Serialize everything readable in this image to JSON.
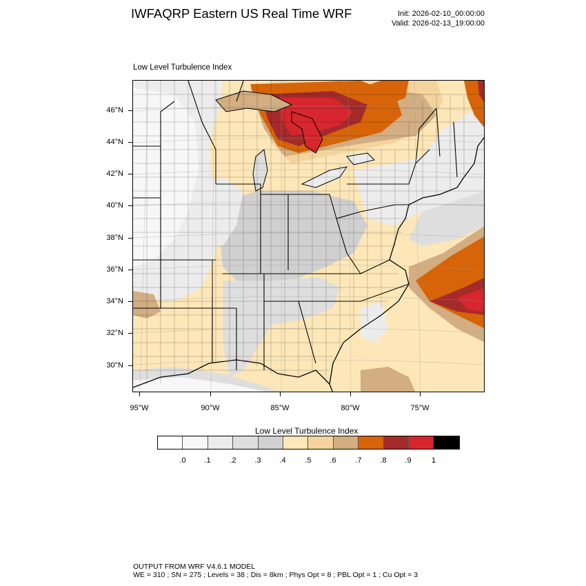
{
  "header": {
    "title": "IWFAQRP Eastern US Real Time WRF",
    "init": "Init: 2026-02-10_00:00:00",
    "valid": "Valid: 2026-02-13_19:00:00"
  },
  "panel": {
    "title": "Low Level Turbulence Index"
  },
  "axes": {
    "lat_labels": [
      "46°N",
      "44°N",
      "42°N",
      "40°N",
      "38°N",
      "36°N",
      "34°N",
      "32°N",
      "30°N"
    ],
    "lon_labels": [
      "95°W",
      "90°W",
      "85°W",
      "80°W",
      "75°W"
    ]
  },
  "colorbar": {
    "title": "Low Level Turbulence Index",
    "labels": [
      ".0",
      ".1",
      ".2",
      ".3",
      ".4",
      ".5",
      ".6",
      ".7",
      ".8",
      ".9",
      "1"
    ],
    "colors": [
      "#ffffff",
      "#f7f7f7",
      "#ececec",
      "#dedede",
      "#d0d0d0",
      "#fde7b8",
      "#f5d39d",
      "#d2ae82",
      "#d76408",
      "#a52a2a",
      "#d7262e",
      "#000000"
    ]
  },
  "map": {
    "background_color": "#fde7b8",
    "field_colors": {
      "lightest": "#f7f7f7",
      "light_gray": "#ececec",
      "gray": "#dedede",
      "mid_gray": "#d0d0d0",
      "pale_orange": "#fde7b8",
      "tan": "#f5d39d",
      "brown": "#d2ae82",
      "orange": "#d76408",
      "dark_red": "#a52a2a",
      "red": "#d7262e"
    }
  },
  "footer": {
    "line1": "OUTPUT FROM WRF V4.6.1 MODEL",
    "line2": "WE = 310 ; SN = 275 ; Levels = 38 ; Dis = 8km ; Phys Opt = 8 ; PBL Opt = 1 ; Cu Opt = 3"
  }
}
